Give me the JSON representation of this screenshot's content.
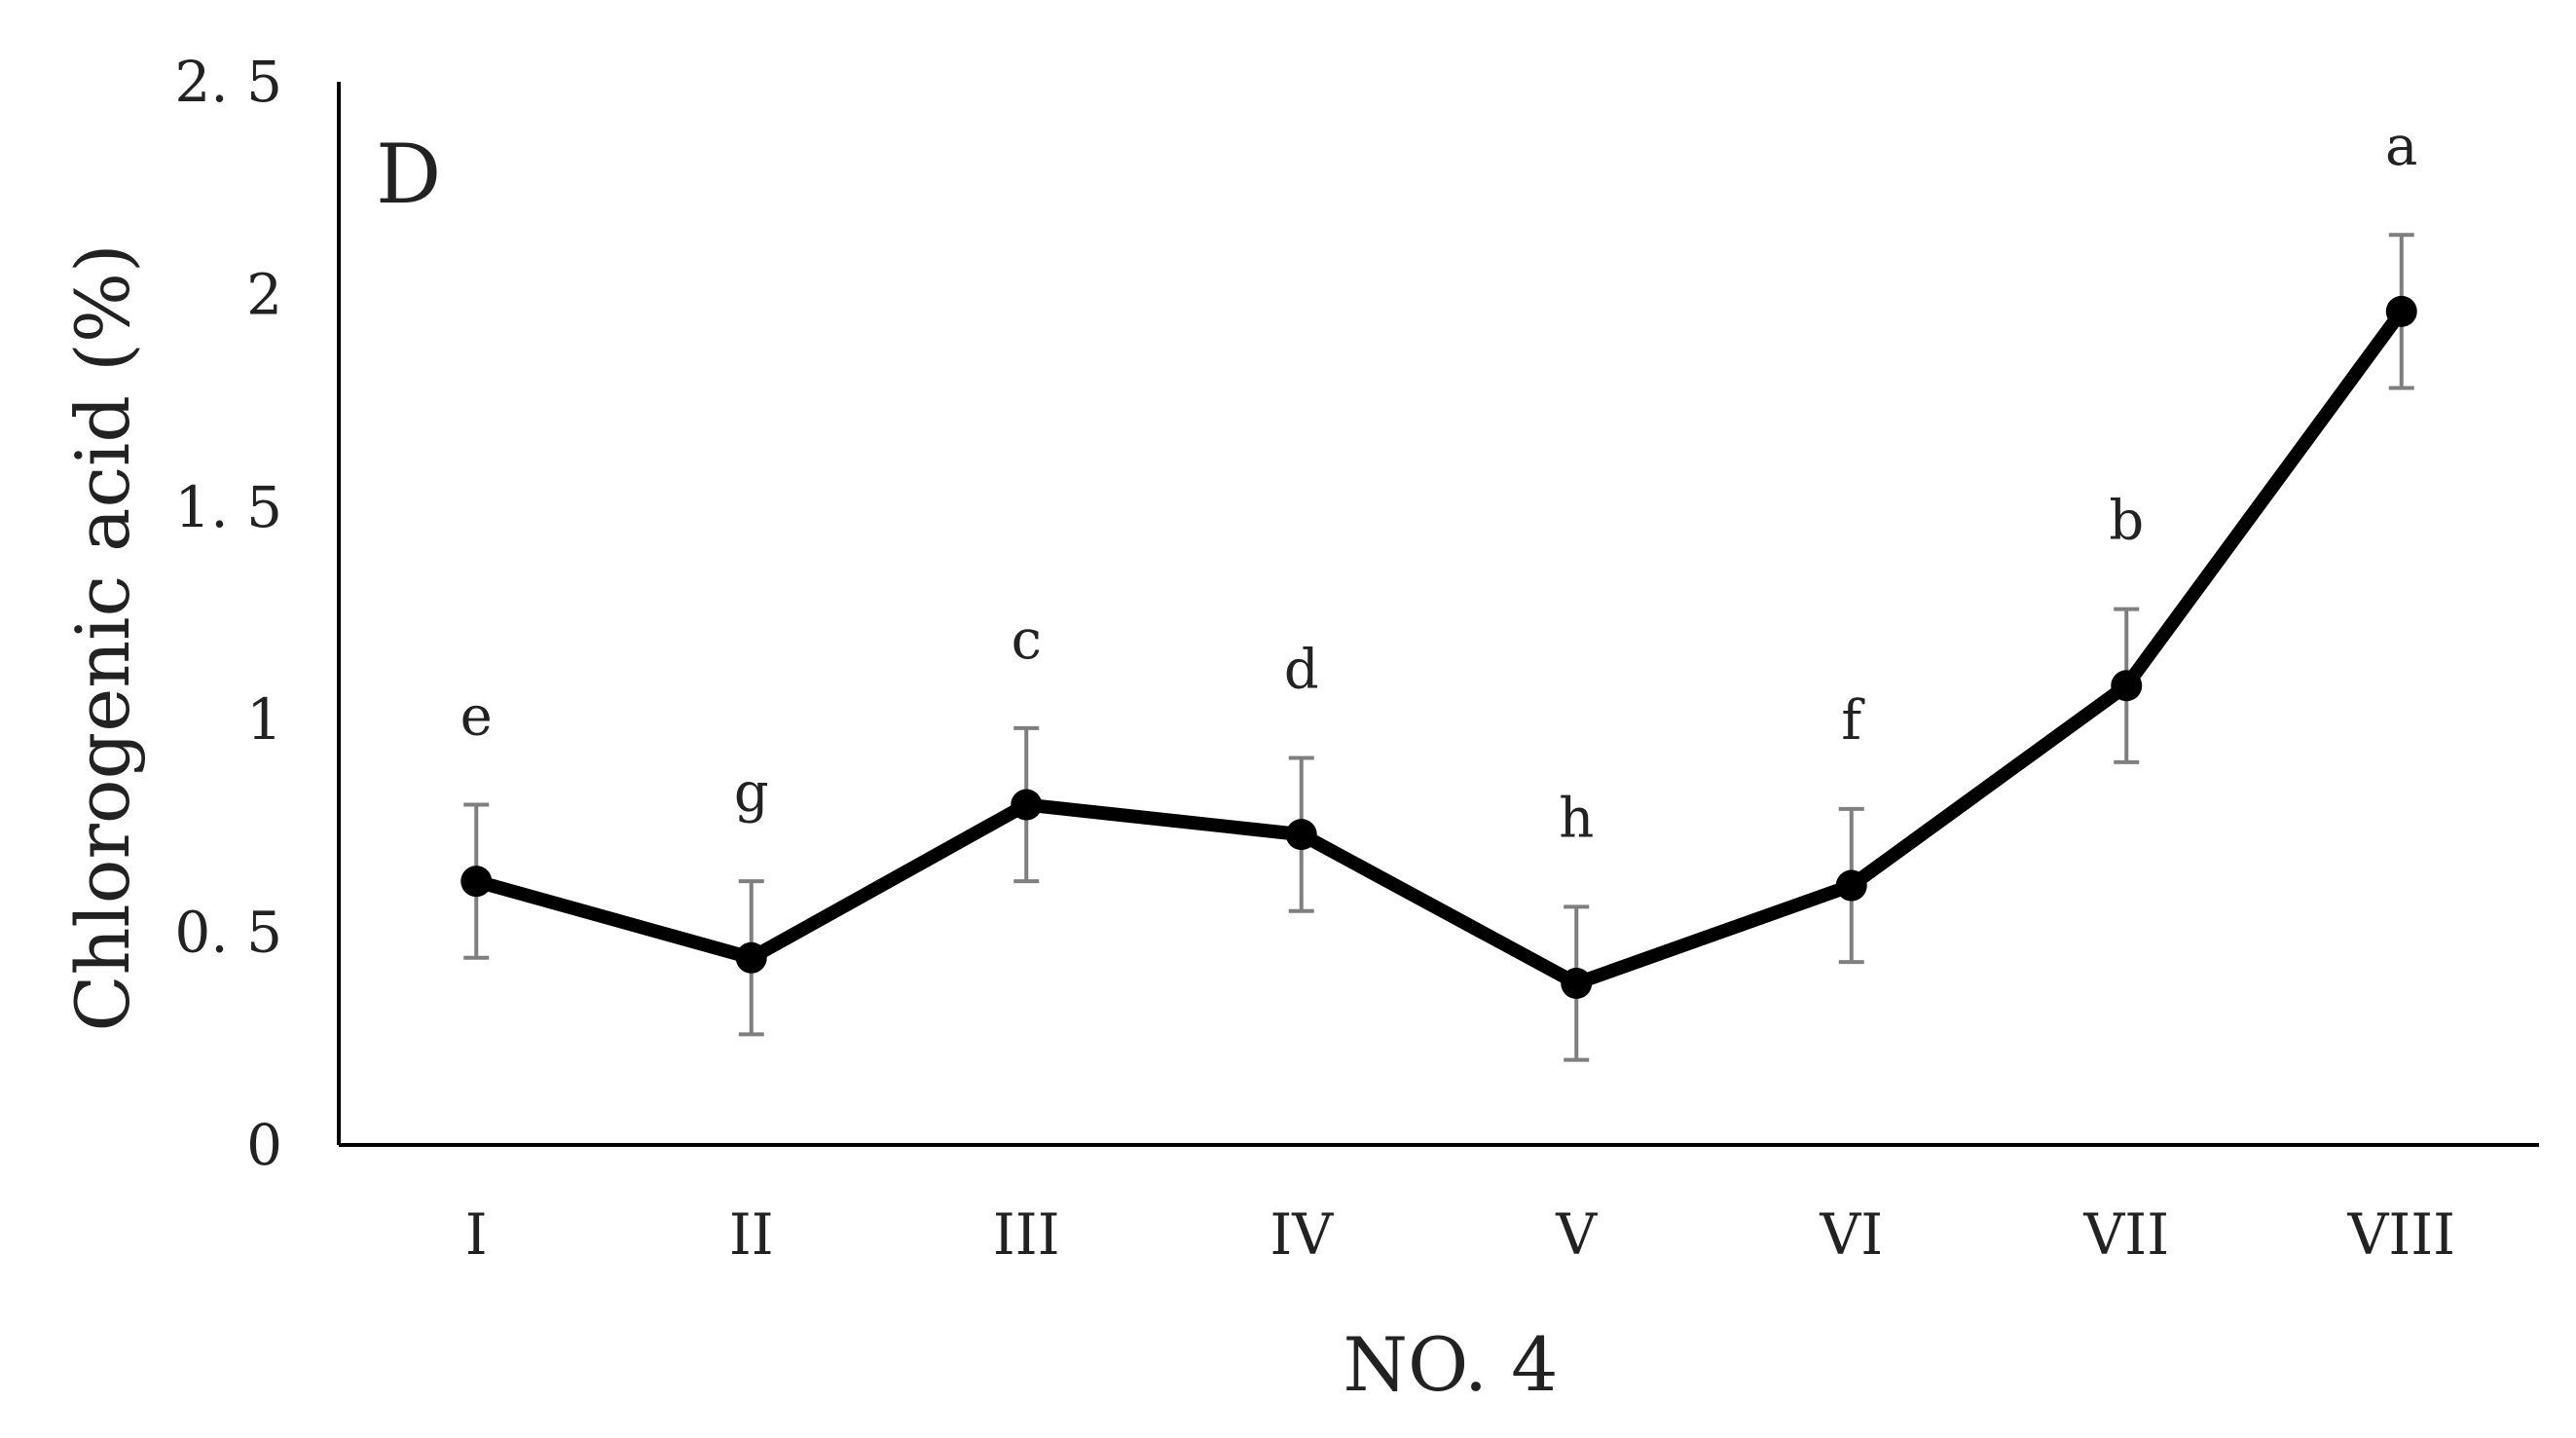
{
  "chart_data": {
    "type": "line",
    "panel_label": "D",
    "xlabel": "NO. 4",
    "ylabel": "Chlorogenic acid (%)",
    "categories": [
      "I",
      "II",
      "III",
      "IV",
      "V",
      "VI",
      "VII",
      "VIII"
    ],
    "series": [
      {
        "values": [
          0.62,
          0.44,
          0.8,
          0.73,
          0.38,
          0.61,
          1.08,
          1.96
        ],
        "errors": [
          0.18,
          0.18,
          0.18,
          0.18,
          0.18,
          0.18,
          0.18,
          0.18
        ],
        "significance_letters": [
          "e",
          "g",
          "c",
          "d",
          "h",
          "f",
          "b",
          "a"
        ]
      }
    ],
    "yticks": [
      "0",
      "0. 5",
      "1",
      "1. 5",
      "2",
      "2. 5"
    ],
    "ylim": [
      0,
      2.5
    ],
    "grid": false,
    "legend": false,
    "colors": {
      "line": "#000000",
      "error_bar": "#7f7f7f",
      "axis": "#000000"
    }
  }
}
